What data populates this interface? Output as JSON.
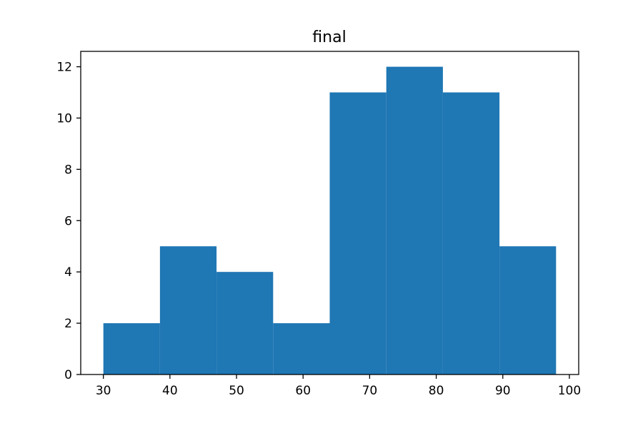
{
  "chart_data": {
    "type": "bar",
    "subtype": "histogram",
    "title": "final",
    "xlabel": "",
    "ylabel": "",
    "bins": [
      {
        "start": 30.0,
        "end": 38.5,
        "count": 2
      },
      {
        "start": 38.5,
        "end": 47.0,
        "count": 5
      },
      {
        "start": 47.0,
        "end": 55.5,
        "count": 4
      },
      {
        "start": 55.5,
        "end": 64.0,
        "count": 2
      },
      {
        "start": 64.0,
        "end": 72.5,
        "count": 11
      },
      {
        "start": 72.5,
        "end": 81.0,
        "count": 12
      },
      {
        "start": 81.0,
        "end": 89.5,
        "count": 11
      },
      {
        "start": 89.5,
        "end": 98.0,
        "count": 5
      }
    ],
    "xlim": [
      26.6,
      101.4
    ],
    "ylim": [
      0,
      12.6
    ],
    "xticks": [
      "30",
      "40",
      "50",
      "60",
      "70",
      "80",
      "90",
      "100"
    ],
    "yticks": [
      "0",
      "2",
      "4",
      "6",
      "8",
      "10",
      "12"
    ],
    "grid": false,
    "bar_color": "#1f77b4"
  }
}
